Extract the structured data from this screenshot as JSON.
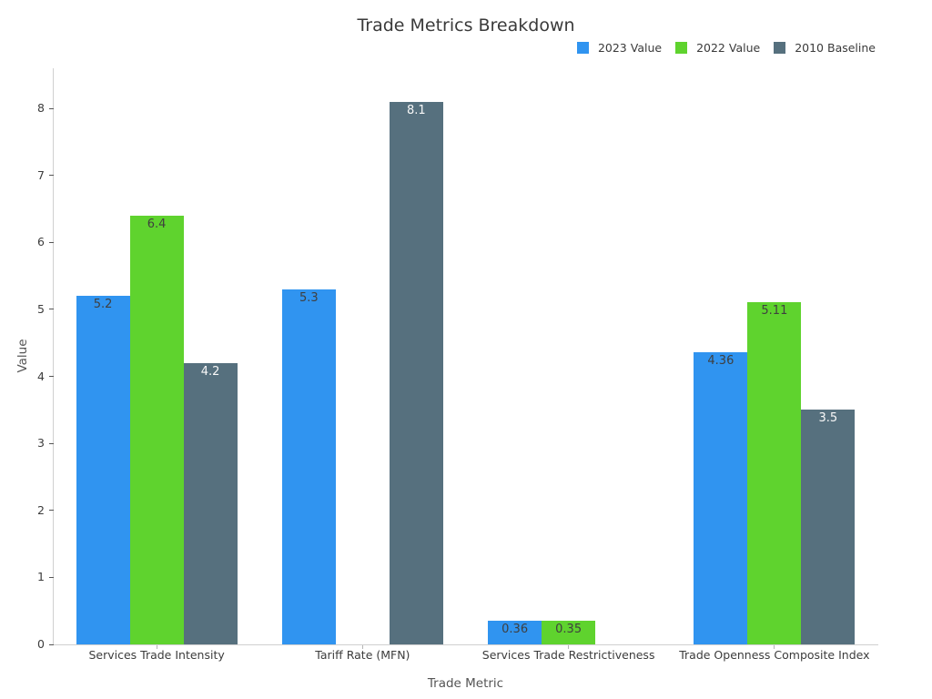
{
  "chart_data": {
    "type": "bar",
    "title": "Trade Metrics Breakdown",
    "xlabel": "Trade Metric",
    "ylabel": "Value",
    "categories": [
      "Services Trade Intensity",
      "Tariff Rate (MFN)",
      "Services Trade Restrictiveness",
      "Trade Openness Composite Index"
    ],
    "series": [
      {
        "name": "2023 Value",
        "color": "#3094F0",
        "label_color": "#3f3f3f",
        "values": [
          5.2,
          5.3,
          0.36,
          4.36
        ]
      },
      {
        "name": "2022 Value",
        "color": "#5FD32E",
        "label_color": "#3f3f3f",
        "values": [
          6.4,
          null,
          0.35,
          5.11
        ]
      },
      {
        "name": "2010 Baseline",
        "color": "#56707E",
        "label_color": "#f8f8f8",
        "values": [
          4.2,
          8.1,
          null,
          3.5
        ]
      }
    ],
    "yticks": [
      0,
      1,
      2,
      3,
      4,
      5,
      6,
      7,
      8
    ],
    "ylim": [
      0,
      8.6
    ],
    "grid": false,
    "legend_position": "top-right",
    "value_labels": true
  }
}
